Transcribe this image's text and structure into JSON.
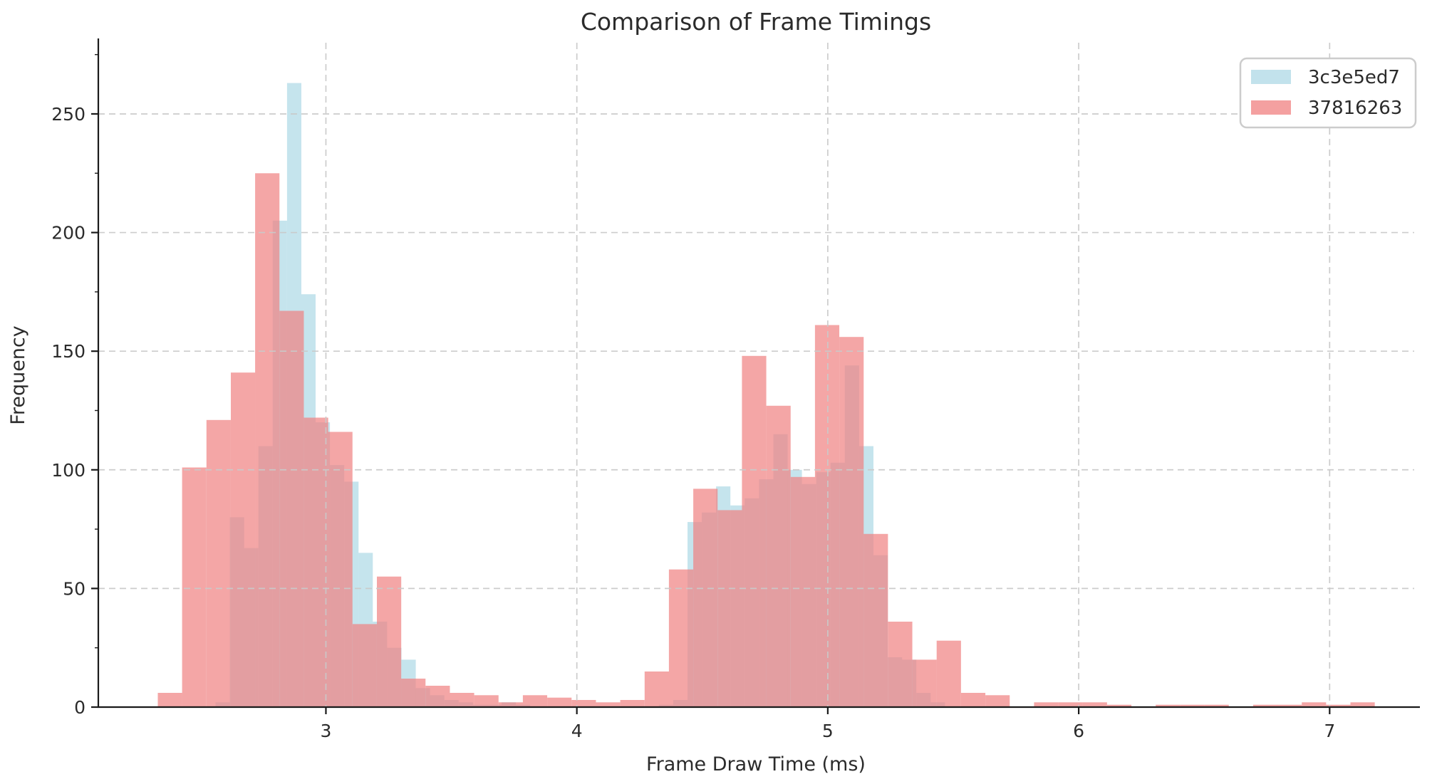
{
  "title": "Comparison of Frame Timings",
  "axes": {
    "x_label": "Frame Draw Time (ms)",
    "y_label": "Frequency",
    "x_ticks": [
      3,
      4,
      5,
      6,
      7
    ],
    "y_ticks": [
      0,
      50,
      100,
      150,
      200,
      250
    ],
    "y_minor_ticks": [
      25,
      75,
      125,
      175,
      225,
      275
    ]
  },
  "legend": {
    "items": [
      {
        "label": "3c3e5ed7",
        "color": "#ADD8E6"
      },
      {
        "label": "37816263",
        "color": "#F08080"
      }
    ]
  },
  "colors": {
    "blue_series": "#ADD8E6",
    "red_series": "#F08080",
    "series_alpha": 0.7,
    "grid": "#c9c9c9",
    "spine": "#1a1a1a",
    "text": "#2b2b2b",
    "legend_border": "#cccccc",
    "background": "#ffffff"
  },
  "chart_data": {
    "type": "histogram",
    "title": "Comparison of Frame Timings",
    "xlabel": "Frame Draw Time (ms)",
    "ylabel": "Frequency",
    "xlim": [
      2.093,
      7.337
    ],
    "ylim": [
      0,
      280
    ],
    "grid": "dashed, both axes, drawn over bars",
    "legend_position": "upper right",
    "series": [
      {
        "name": "3c3e5ed7",
        "color": "#ADD8E6",
        "alpha": 0.7,
        "bin_start": 2.56,
        "bin_width": 0.057,
        "counts": [
          2,
          80,
          67,
          110,
          205,
          263,
          174,
          120,
          102,
          95,
          65,
          36,
          25,
          20,
          8,
          5,
          3,
          2,
          1,
          1,
          2,
          1,
          0,
          0,
          0,
          0,
          0,
          0,
          0,
          0,
          0,
          1,
          3,
          78,
          82,
          93,
          85,
          88,
          96,
          115,
          100,
          94,
          99,
          103,
          144,
          110,
          64,
          21,
          20,
          6,
          2
        ]
      },
      {
        "name": "37816263",
        "color": "#F08080",
        "alpha": 0.7,
        "bin_start": 2.33,
        "bin_width": 0.097,
        "counts": [
          6,
          101,
          121,
          141,
          225,
          167,
          122,
          116,
          35,
          55,
          12,
          9,
          6,
          5,
          2,
          5,
          4,
          3,
          2,
          3,
          15,
          58,
          92,
          83,
          148,
          127,
          97,
          161,
          156,
          73,
          36,
          20,
          28,
          6,
          5,
          0,
          2,
          2,
          2,
          1,
          0,
          1,
          1,
          1,
          0,
          1,
          1,
          2,
          1,
          2
        ]
      }
    ]
  }
}
